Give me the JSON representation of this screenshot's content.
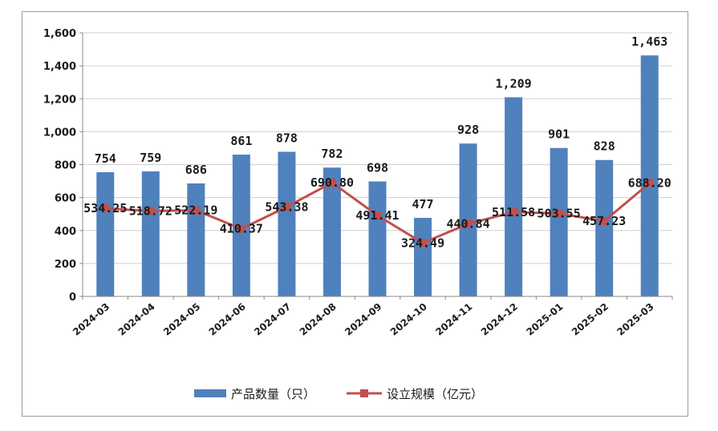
{
  "chart_data": {
    "type": "bar",
    "categories": [
      "2024-03",
      "2024-04",
      "2024-05",
      "2024-06",
      "2024-07",
      "2024-08",
      "2024-09",
      "2024-10",
      "2024-11",
      "2024-12",
      "2025-01",
      "2025-02",
      "2025-03"
    ],
    "series": [
      {
        "name": "产品数量（只）",
        "type": "bar",
        "color": "#4f81bd",
        "values": [
          754,
          759,
          686,
          861,
          878,
          782,
          698,
          477,
          928,
          1209,
          901,
          828,
          1463
        ],
        "labels": [
          "754",
          "759",
          "686",
          "861",
          "878",
          "782",
          "698",
          "477",
          "928",
          "1,209",
          "901",
          "828",
          "1,463"
        ]
      },
      {
        "name": "设立规模（亿元）",
        "type": "line",
        "color": "#c0504d",
        "values": [
          534.25,
          518.72,
          522.19,
          410.37,
          543.38,
          690.8,
          491.41,
          324.49,
          440.84,
          511.58,
          503.55,
          457.23,
          688.2
        ],
        "labels": [
          "534.25",
          "518.72",
          "522.19",
          "410.37",
          "543.38",
          "690.80",
          "491.41",
          "324.49",
          "440.84",
          "511.58",
          "503.55",
          "457.23",
          "688.20"
        ]
      }
    ],
    "ylim": [
      0,
      1600
    ],
    "yticks": [
      0,
      200,
      400,
      600,
      800,
      1000,
      1200,
      1400,
      1600
    ],
    "ytick_labels": [
      "0",
      "200",
      "400",
      "600",
      "800",
      "1,000",
      "1,200",
      "1,400",
      "1,600"
    ],
    "grid": true,
    "legend_position": "bottom"
  }
}
